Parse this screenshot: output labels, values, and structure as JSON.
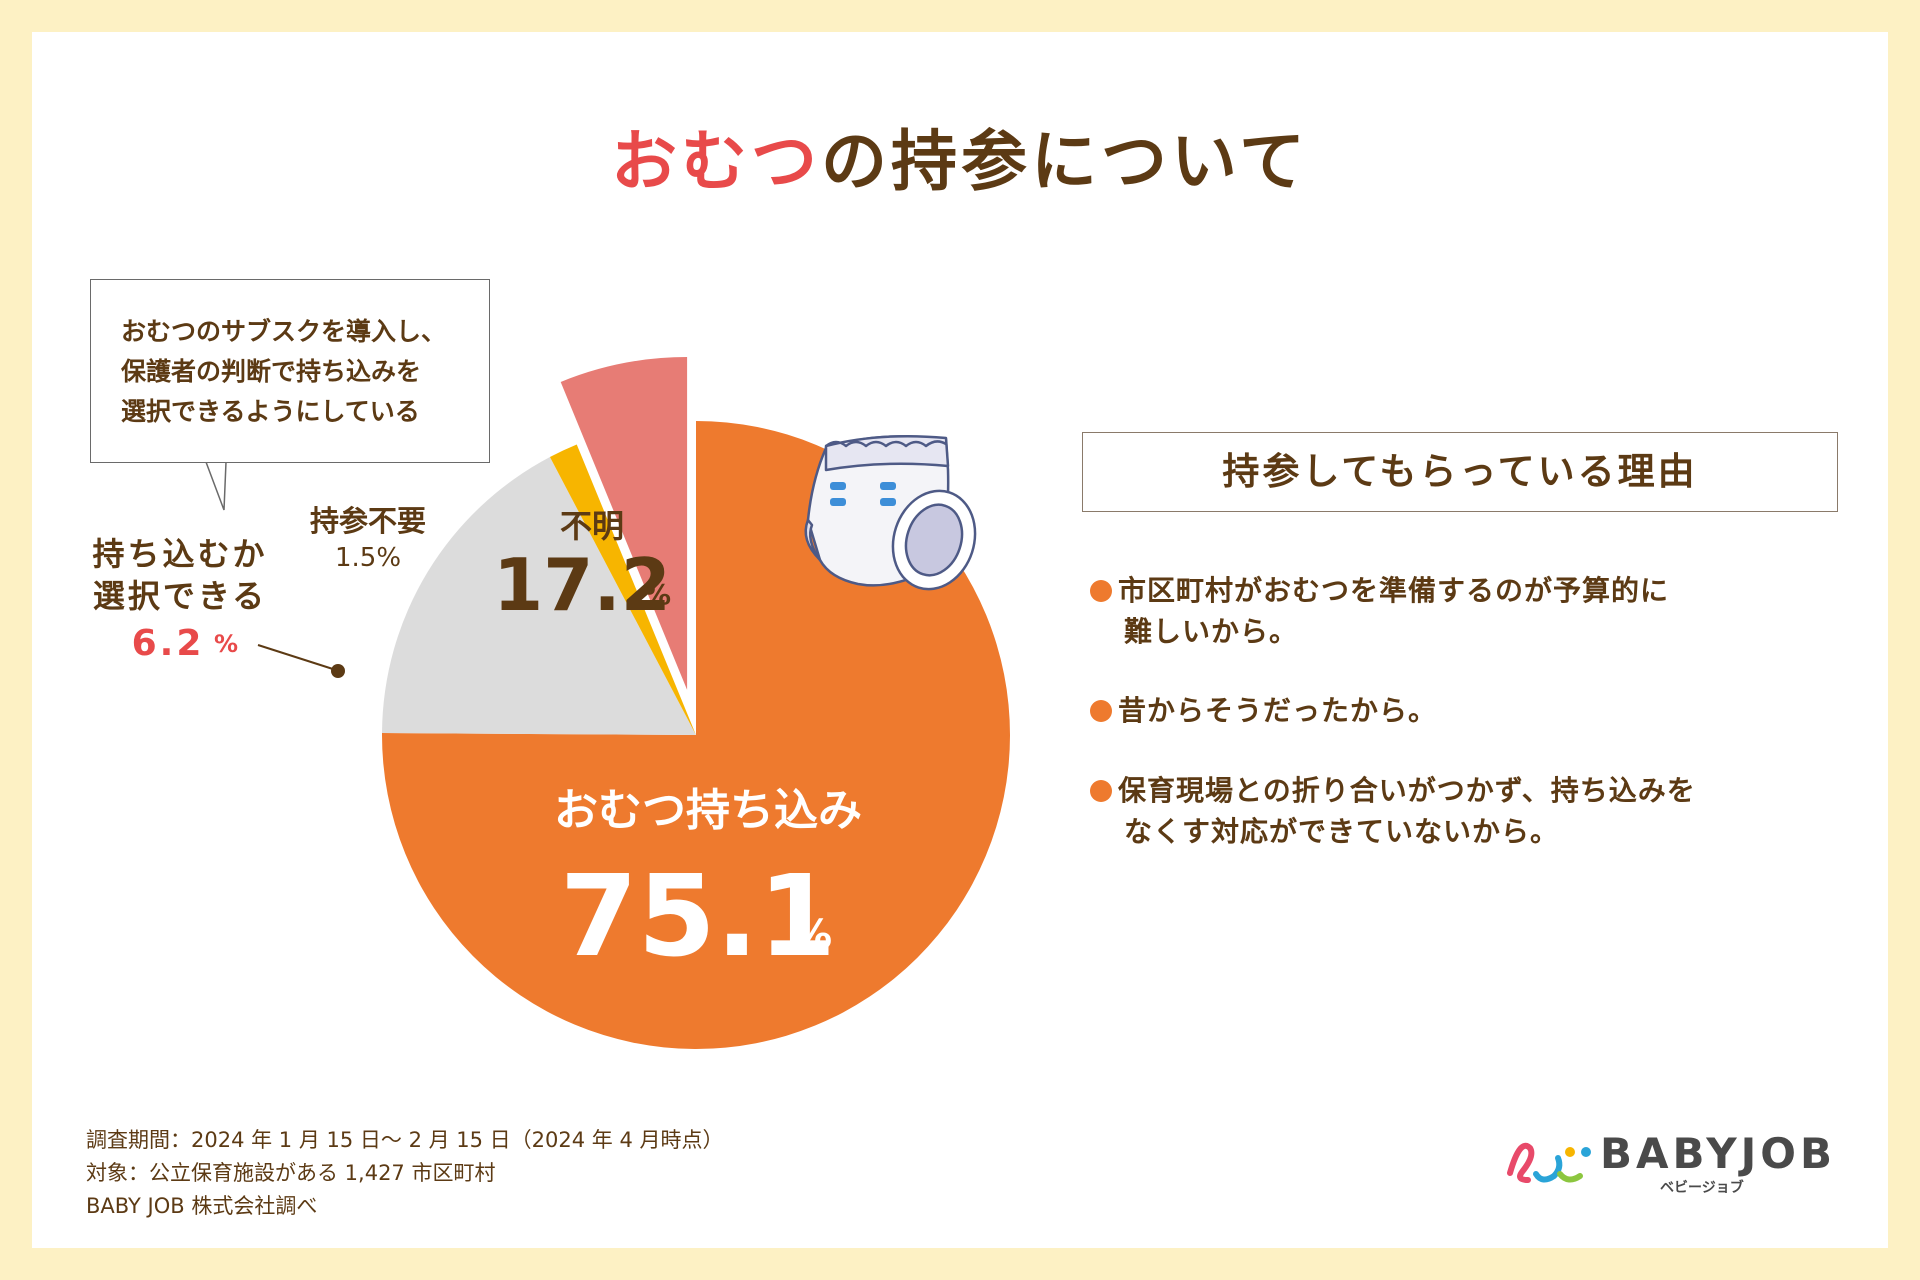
{
  "title": {
    "accent": "おむつ",
    "rest": "の持参について"
  },
  "chart_data": {
    "type": "pie",
    "title": "おむつの持参について",
    "slices": [
      {
        "label": "おむつ持ち込み",
        "value": 75.1,
        "color": "#ee7a2e"
      },
      {
        "label": "不明",
        "value": 17.2,
        "color": "#dcdcdc"
      },
      {
        "label": "持参不要",
        "value": 1.5,
        "color": "#f7b500"
      },
      {
        "label": "持ち込むか選択できる",
        "value": 6.2,
        "color": "#e77c75",
        "exploded": true
      }
    ]
  },
  "labels": {
    "main": {
      "name": "おむつ持ち込み",
      "value": "75.1",
      "unit": "%"
    },
    "unknown": {
      "name": "不明",
      "value": "17.2",
      "unit": "%"
    },
    "not_needed": {
      "name": "持参不要",
      "value": "1.5%"
    },
    "choice": {
      "line1": "持ち込むか",
      "line2": "選択できる",
      "value": "6.2",
      "unit": "%"
    }
  },
  "callout": {
    "lines": [
      "おむつのサブスクを導入し、",
      "保護者の判断で持ち込みを",
      "選択できるようにしている"
    ]
  },
  "reasons": {
    "heading": "持参してもらっている理由",
    "items": [
      {
        "line1": "市区町村がおむつを準備するのが予算的に",
        "line2": "難しいから。"
      },
      {
        "line1": "昔からそうだったから。",
        "line2": ""
      },
      {
        "line1": "保育現場との折り合いがつかず、持ち込みを",
        "line2": "なくす対応ができていないから。"
      }
    ]
  },
  "footer": [
    "調査期間：2024 年 1 月 15 日〜 2 月 15 日（2024 年 4 月時点）",
    "対象：公立保育施設がある 1,427 市区町村",
    "BABY JOB 株式会社調べ"
  ],
  "logo": {
    "name": "BABYJOB",
    "sub": "ベビージョブ"
  }
}
